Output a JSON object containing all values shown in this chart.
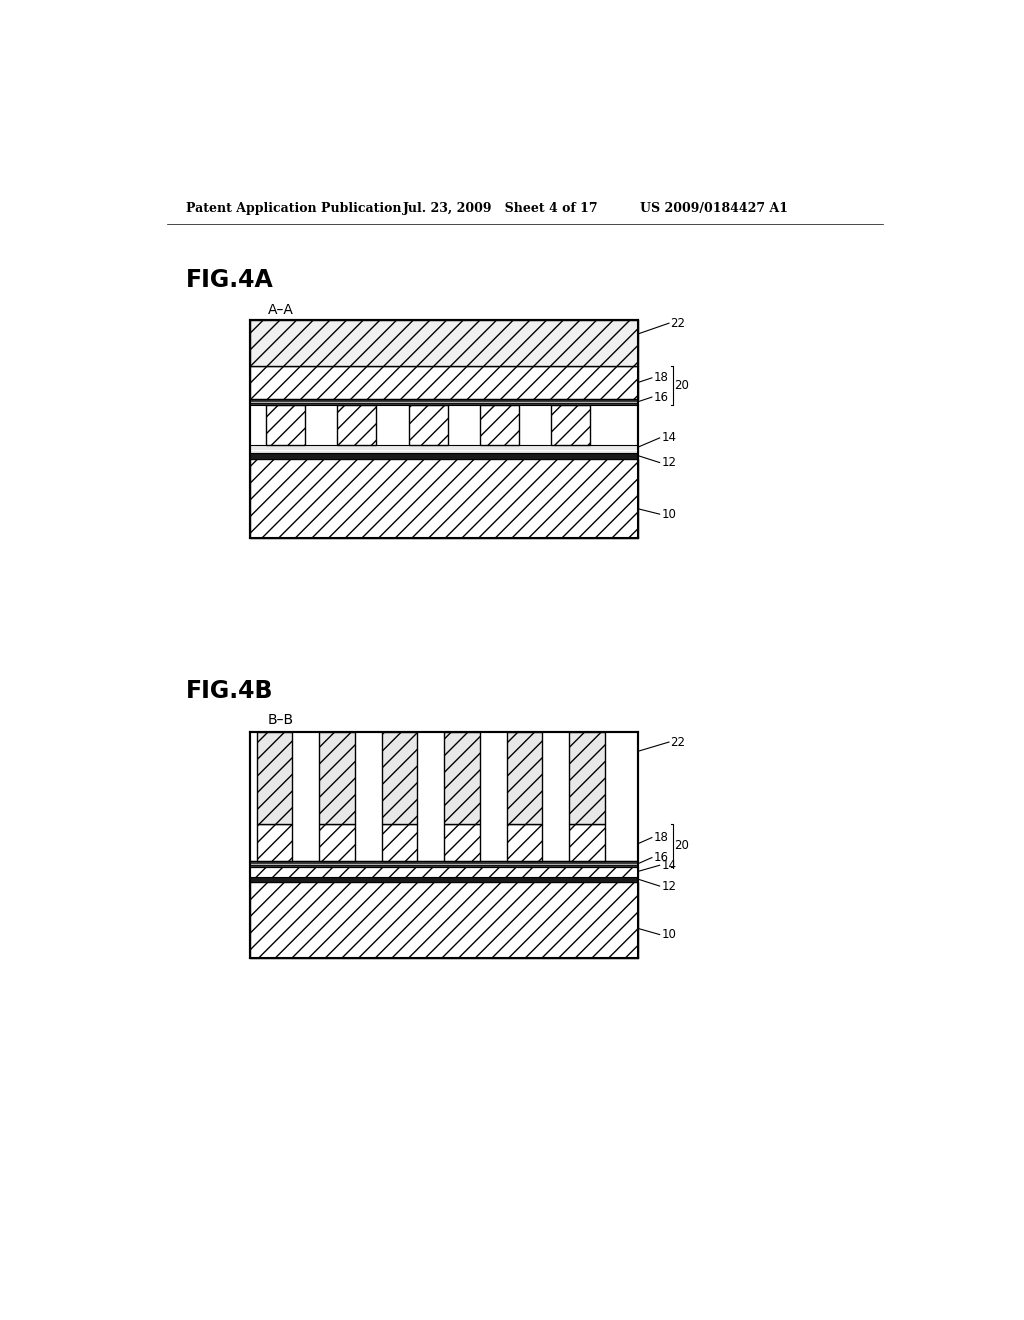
{
  "bg_color": "#ffffff",
  "header_left": "Patent Application Publication",
  "header_mid": "Jul. 23, 2009   Sheet 4 of 17",
  "header_right": "US 2009/0184427 A1",
  "fig4a_label": "FIG.4A",
  "fig4a_section": "A–A",
  "fig4b_label": "FIG.4B",
  "fig4b_section": "B–B"
}
